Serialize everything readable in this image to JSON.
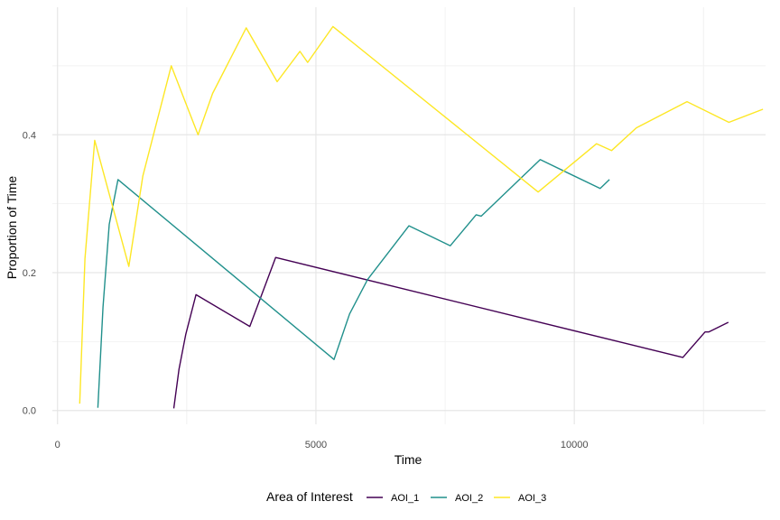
{
  "chart_data": {
    "type": "line",
    "title": "",
    "xlabel": "Time",
    "ylabel": "Proportion of Time",
    "xlim": [
      -100,
      13700
    ],
    "ylim": [
      -0.02,
      0.585
    ],
    "x_ticks": [
      0,
      5000,
      10000
    ],
    "x_tick_labels": [
      "0",
      "5000",
      "10000"
    ],
    "x_minor_ticks": [
      2500,
      7500,
      12500
    ],
    "y_ticks": [
      0.0,
      0.2,
      0.4
    ],
    "y_tick_labels": [
      "0.0",
      "0.2",
      "0.4"
    ],
    "y_minor_ticks": [
      0.1,
      0.3,
      0.5
    ],
    "grid": true,
    "legend": {
      "title": "Area of Interest",
      "position": "bottom"
    },
    "series": [
      {
        "name": "AOI_1",
        "color": "#440154",
        "points": [
          [
            2250,
            0.003
          ],
          [
            2350,
            0.06
          ],
          [
            2480,
            0.11
          ],
          [
            2680,
            0.168
          ],
          [
            3720,
            0.122
          ],
          [
            4220,
            0.222
          ],
          [
            12100,
            0.077
          ],
          [
            12530,
            0.114
          ],
          [
            12600,
            0.114
          ],
          [
            12980,
            0.128
          ]
        ]
      },
      {
        "name": "AOI_2",
        "color": "#21908C",
        "points": [
          [
            780,
            0.004
          ],
          [
            880,
            0.15
          ],
          [
            1000,
            0.27
          ],
          [
            1170,
            0.335
          ],
          [
            5350,
            0.074
          ],
          [
            5650,
            0.14
          ],
          [
            6000,
            0.19
          ],
          [
            6800,
            0.268
          ],
          [
            7600,
            0.239
          ],
          [
            8100,
            0.284
          ],
          [
            8200,
            0.282
          ],
          [
            9340,
            0.364
          ],
          [
            10500,
            0.322
          ],
          [
            10680,
            0.335
          ]
        ]
      },
      {
        "name": "AOI_3",
        "color": "#FDE725",
        "points": [
          [
            430,
            0.01
          ],
          [
            530,
            0.22
          ],
          [
            720,
            0.392
          ],
          [
            1380,
            0.209
          ],
          [
            1650,
            0.34
          ],
          [
            2200,
            0.5
          ],
          [
            2720,
            0.4
          ],
          [
            3000,
            0.46
          ],
          [
            3650,
            0.555
          ],
          [
            4250,
            0.477
          ],
          [
            4690,
            0.521
          ],
          [
            4840,
            0.505
          ],
          [
            5330,
            0.557
          ],
          [
            9300,
            0.317
          ],
          [
            10430,
            0.387
          ],
          [
            10720,
            0.377
          ],
          [
            11200,
            0.41
          ],
          [
            12180,
            0.448
          ],
          [
            12990,
            0.418
          ],
          [
            13650,
            0.437
          ]
        ]
      }
    ]
  }
}
